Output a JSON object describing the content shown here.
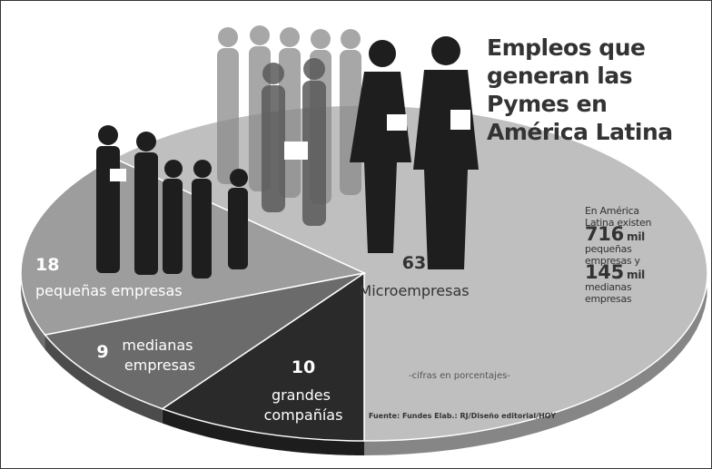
{
  "chart_data": {
    "type": "pie",
    "title": "Empleos que generan las Pymes en América Latina",
    "categories": [
      "Microempresas",
      "grandes compañías",
      "medianas empresas",
      "pequeñas empresas"
    ],
    "values": [
      63,
      10,
      9,
      18
    ],
    "colors": [
      "#bfbfbf",
      "#2a2a2a",
      "#6b6b6b",
      "#9d9d9d"
    ],
    "note": "-cifras en porcentajes-",
    "source": "Fuente: Fundes Elab.: RJ/Diseño editorial/HOY",
    "annotation": {
      "intro": "En América Latina existen",
      "small_count": "716",
      "small_unit": "mil",
      "small_label": "pequeñas empresas y",
      "medium_count": "145",
      "medium_unit": "mil",
      "medium_label": "medianas empresas"
    }
  }
}
